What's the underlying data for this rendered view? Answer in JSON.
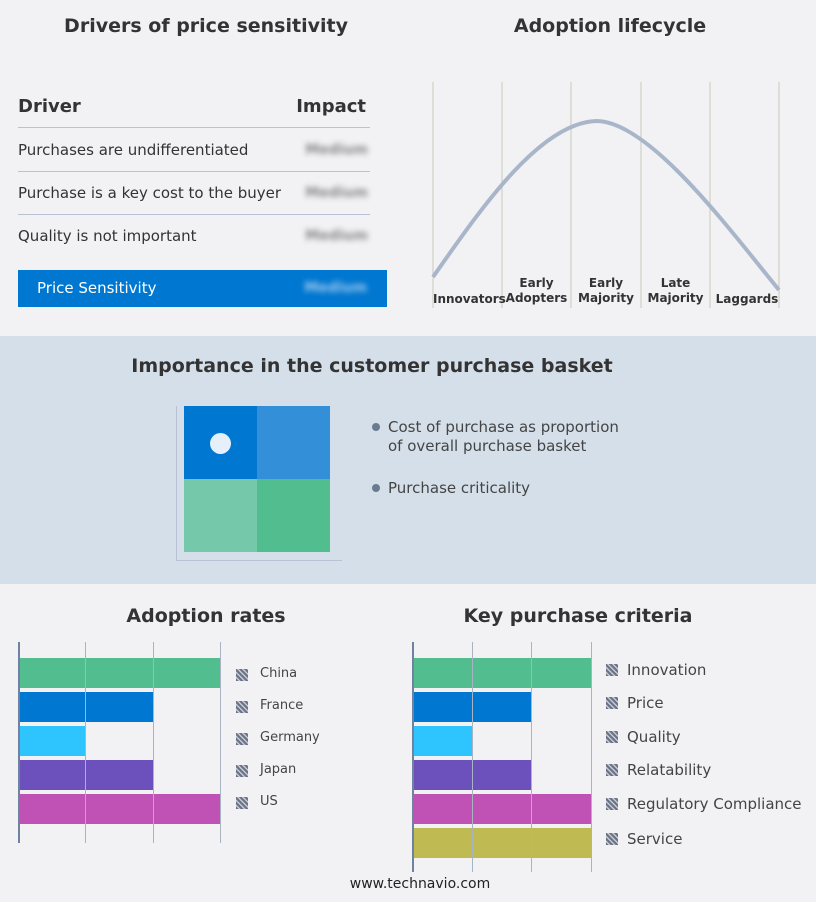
{
  "drivers": {
    "title": "Drivers of price sensitivity",
    "col_driver": "Driver",
    "col_impact": "Impact",
    "rows": [
      {
        "driver": "Purchases are undifferentiated",
        "impact": "Medium"
      },
      {
        "driver": "Purchase is a key cost to the buyer",
        "impact": "Medium"
      },
      {
        "driver": "Quality is not important",
        "impact": "Medium"
      }
    ],
    "summary": {
      "label": "Price Sensitivity",
      "impact": "Medium"
    },
    "accent": "#0077d0"
  },
  "lifecycle": {
    "title": "Adoption lifecycle",
    "stages": [
      [
        "Innovators"
      ],
      [
        "Early",
        "Adopters"
      ],
      [
        "Early",
        "Majority"
      ],
      [
        "Late",
        "Majority"
      ],
      [
        "Laggards"
      ]
    ],
    "curve_color": "#a9b6ca"
  },
  "basket": {
    "title": "Importance in the customer purchase basket",
    "legend": [
      "Cost of purchase as proportion of overall purchase basket",
      "Purchase criticality"
    ],
    "colors": [
      "#0077d0",
      "#3390d8",
      "#76c8aa",
      "#52bd8f"
    ]
  },
  "footer": "www.technavio.com",
  "chart_data": [
    {
      "type": "bar",
      "orientation": "horizontal",
      "title": "Adoption rates",
      "categories": [
        "China",
        "France",
        "Germany",
        "Japan",
        "US"
      ],
      "values": [
        3,
        2,
        1,
        2,
        3
      ],
      "xlim": [
        0,
        3
      ],
      "grid": true,
      "legend": "right",
      "colors": [
        "#52bd8f",
        "#0077d0",
        "#2ec4fe",
        "#6c51bc",
        "#c052b5"
      ]
    },
    {
      "type": "bar",
      "orientation": "horizontal",
      "title": "Key purchase criteria",
      "categories": [
        "Innovation",
        "Price",
        "Quality",
        "Relatability",
        "Regulatory Compliance",
        "Service"
      ],
      "values": [
        3,
        2,
        1,
        2,
        3,
        3
      ],
      "xlim": [
        0,
        3
      ],
      "grid": true,
      "legend": "right",
      "colors": [
        "#52bd8f",
        "#0077d0",
        "#2ec4fe",
        "#6c51bc",
        "#c052b5",
        "#bfbb52"
      ]
    }
  ]
}
